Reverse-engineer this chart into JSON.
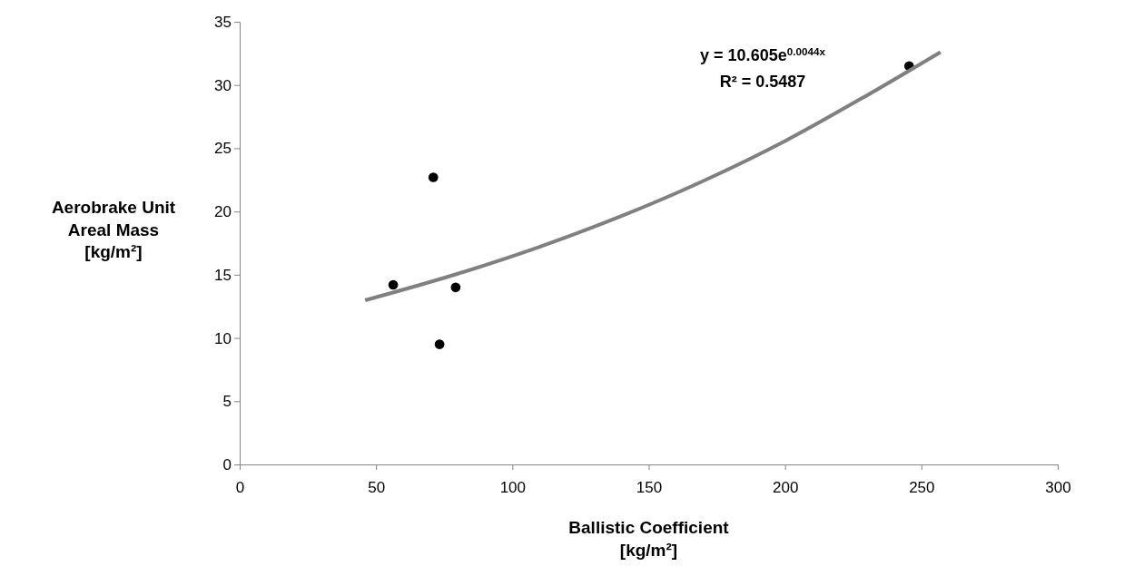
{
  "chart_data": {
    "type": "scatter",
    "xlabel": "Ballistic Coefficient\n[kg/m²]",
    "ylabel": "Aerobrake Unit\nAreal Mass\n[kg/m²]",
    "xlim": [
      0,
      300
    ],
    "xticks": [
      0,
      50,
      100,
      150,
      200,
      250,
      300
    ],
    "ylim": [
      0,
      35
    ],
    "yticks": [
      0,
      5,
      10,
      15,
      20,
      25,
      30,
      35
    ],
    "grid": false,
    "marker": "circle",
    "annotations": [
      "y = 10.605e$^{0.0044x}$",
      "R² = 0.5487"
    ],
    "series": [
      {
        "color": "#000000",
        "x": [
          56.3,
          71.0,
          79.2,
          73.3,
          245.5
        ],
        "values": [
          14.2,
          22.7,
          14.0,
          9.5,
          31.5
        ]
      },
      {
        "type": "line",
        "color": "#808080",
        "line_style": "solid",
        "marker": "none",
        "x": [
          46,
          80,
          110,
          140,
          170,
          200,
          230,
          257
        ],
        "values": [
          12.98,
          15.08,
          17.21,
          19.64,
          22.41,
          25.57,
          29.18,
          32.6
        ]
      }
    ]
  }
}
